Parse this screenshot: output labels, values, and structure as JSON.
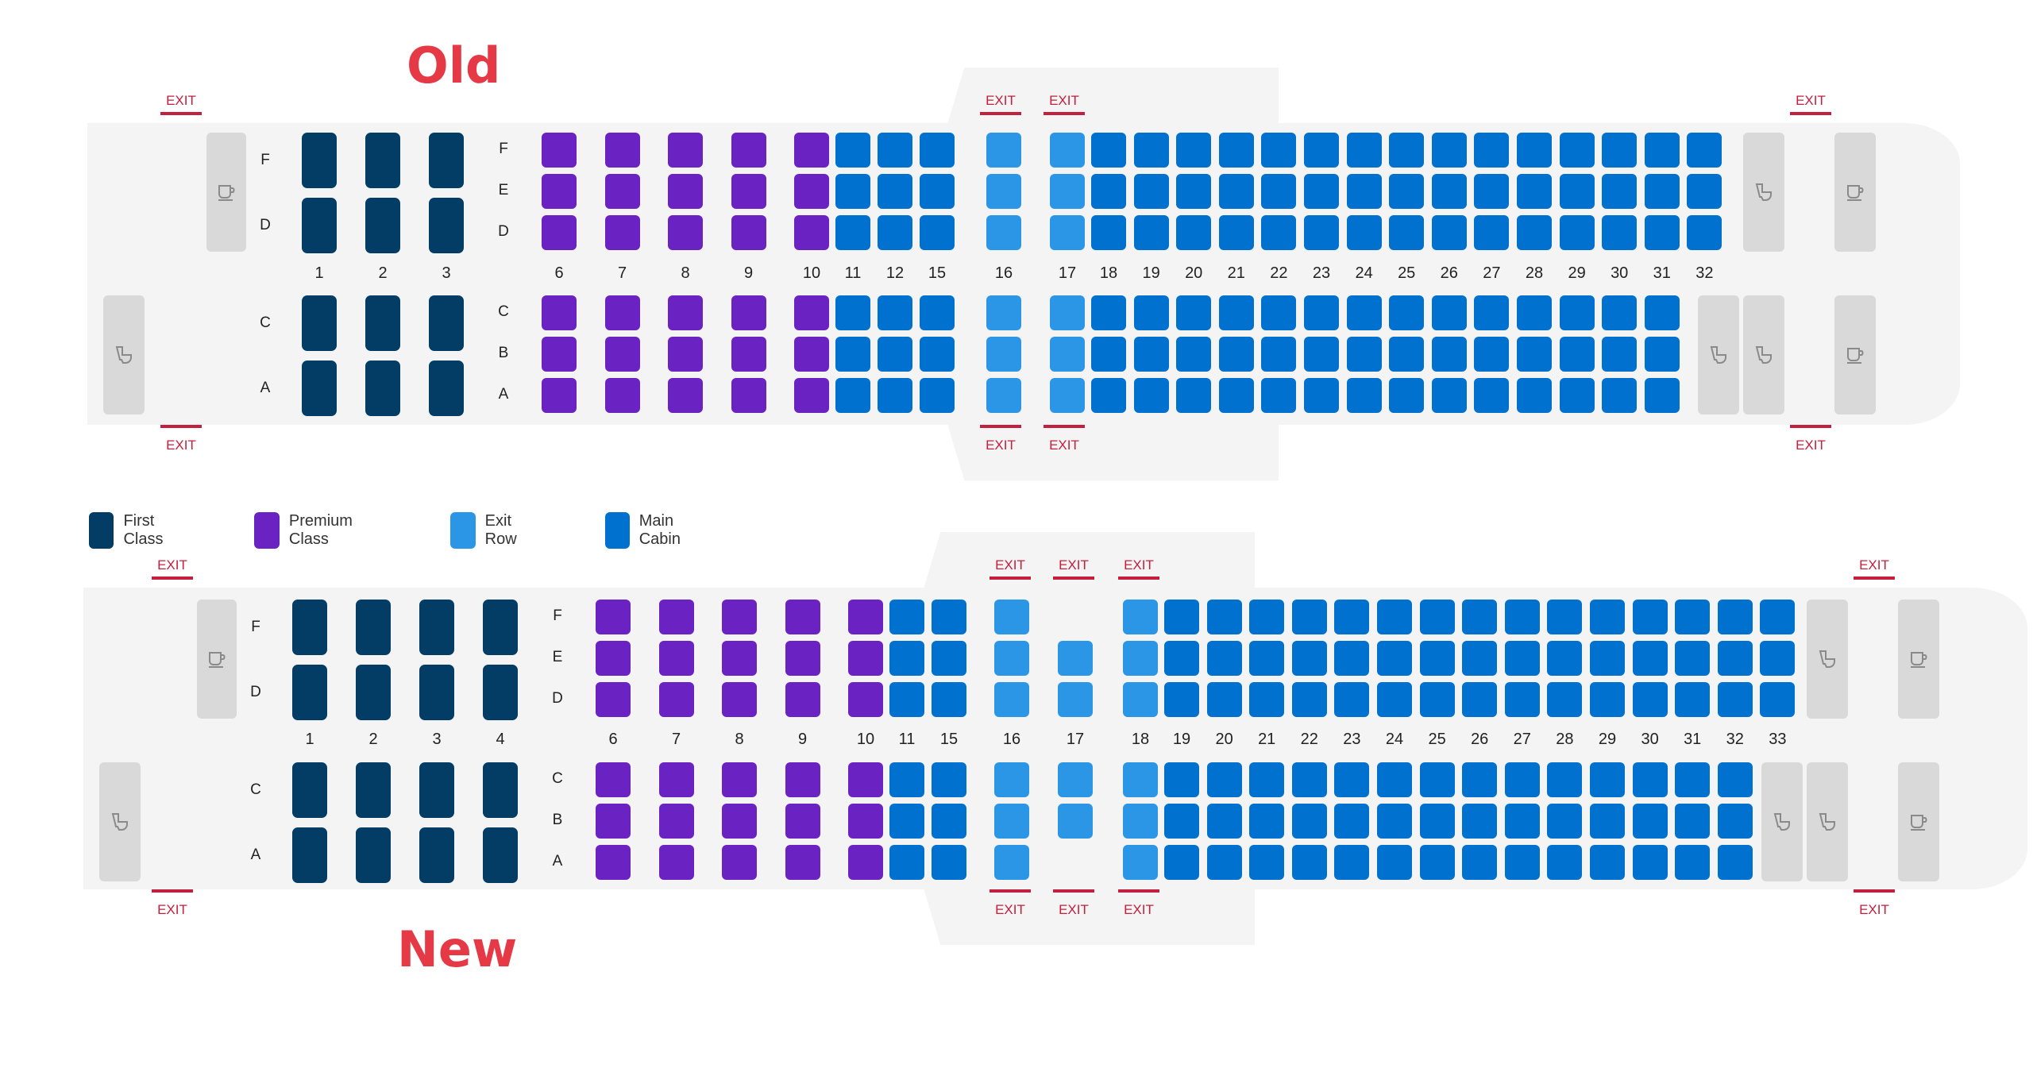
{
  "titles": {
    "old": "Old",
    "new": "New"
  },
  "legend": [
    {
      "label": "First Class",
      "color": "#033d66",
      "class": "first"
    },
    {
      "label": "Premium Class",
      "color": "#6a22c2",
      "class": "premium"
    },
    {
      "label": "Exit Row",
      "color": "#2c96e6",
      "class": "exit"
    },
    {
      "label": "Main Cabin",
      "color": "#0071ce",
      "class": "main"
    }
  ],
  "colors": {
    "first": "#033d66",
    "premium": "#6a22c2",
    "exit": "#2c96e6",
    "main": "#0071ce",
    "exit_text": "#c2203d",
    "fuselage": "#f4f4f4",
    "facility": "#d9d9d9"
  },
  "exit_label": "EXIT",
  "icons": {
    "galley": "coffee-cup-icon",
    "lavatory": "toilet-icon"
  },
  "maps": {
    "old": {
      "first_rows": [
        "1",
        "2",
        "3"
      ],
      "first_letters": [
        "F",
        "D",
        "C",
        "A"
      ],
      "cabin_letters": [
        "F",
        "E",
        "D",
        "C",
        "B",
        "A"
      ],
      "rows": [
        "6",
        "7",
        "8",
        "9",
        "10",
        "11",
        "12",
        "15",
        "16",
        "17",
        "18",
        "19",
        "20",
        "21",
        "22",
        "23",
        "24",
        "25",
        "26",
        "27",
        "28",
        "29",
        "30",
        "31",
        "32"
      ],
      "row_classes": [
        "premium",
        "premium",
        "premium",
        "premium",
        "premium",
        "main",
        "main",
        "main",
        "exit",
        "exit",
        "main",
        "main",
        "main",
        "main",
        "main",
        "main",
        "main",
        "main",
        "main",
        "main",
        "main",
        "main",
        "main",
        "main",
        "main"
      ],
      "partial_rows": {
        "32": [
          "F",
          "E",
          "D"
        ]
      },
      "exits": 6
    },
    "new": {
      "first_rows": [
        "1",
        "2",
        "3",
        "4"
      ],
      "first_letters": [
        "F",
        "D",
        "C",
        "A"
      ],
      "cabin_letters": [
        "F",
        "E",
        "D",
        "C",
        "B",
        "A"
      ],
      "rows": [
        "6",
        "7",
        "8",
        "9",
        "10",
        "11",
        "15",
        "16",
        "17",
        "18",
        "19",
        "20",
        "21",
        "22",
        "23",
        "24",
        "25",
        "26",
        "27",
        "28",
        "29",
        "30",
        "31",
        "32",
        "33"
      ],
      "row_classes": [
        "premium",
        "premium",
        "premium",
        "premium",
        "premium",
        "main",
        "main",
        "exit",
        "exit",
        "exit",
        "main",
        "main",
        "main",
        "main",
        "main",
        "main",
        "main",
        "main",
        "main",
        "main",
        "main",
        "main",
        "main",
        "main",
        "main"
      ],
      "partial_rows": {
        "17": [
          "E",
          "D",
          "C",
          "B"
        ],
        "33": [
          "F",
          "E",
          "D"
        ]
      },
      "exits": 8
    }
  }
}
